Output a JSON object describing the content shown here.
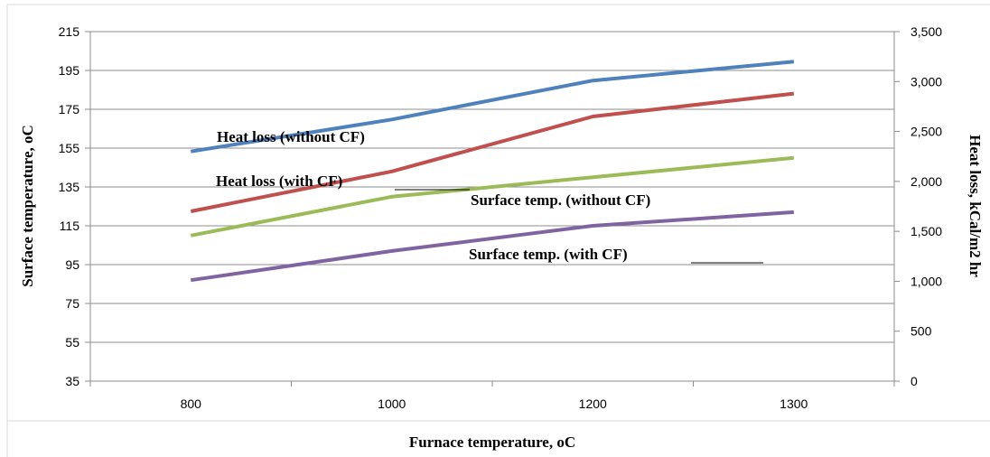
{
  "chart_data": {
    "type": "line",
    "categories": [
      "800",
      "1000",
      "1200",
      "1300"
    ],
    "xlabel": "Furnace temperature, oC",
    "ylabel": "Surface temperature, oC",
    "y2label": "Heat loss, kCal/m2 hr",
    "ylim": [
      35,
      215
    ],
    "yticks": [
      "215",
      "195",
      "175",
      "155",
      "135",
      "115",
      "95",
      "75",
      "55",
      "35"
    ],
    "y2lim": [
      0,
      3500
    ],
    "y2ticks": [
      "3,500",
      "3,000",
      "2,500",
      "2,000",
      "1,500",
      "1,000",
      "500",
      "0"
    ],
    "grid": "horizontal",
    "legend": "none",
    "series": [
      {
        "name": "Heat loss (without CF)",
        "axis": "right",
        "color": "#4f81bd",
        "values": [
          2300,
          2620,
          3010,
          3200
        ]
      },
      {
        "name": "Heat loss (with CF)",
        "axis": "right",
        "color": "#c0504d",
        "values": [
          1700,
          2100,
          2650,
          2880
        ]
      },
      {
        "name": "Surface temp. (without CF)",
        "axis": "left",
        "color": "#9bbb59",
        "values": [
          110,
          130,
          140,
          150
        ]
      },
      {
        "name": "Surface temp. (with CF)",
        "axis": "left",
        "color": "#8064a2",
        "values": [
          87,
          102,
          115,
          122
        ]
      }
    ]
  }
}
